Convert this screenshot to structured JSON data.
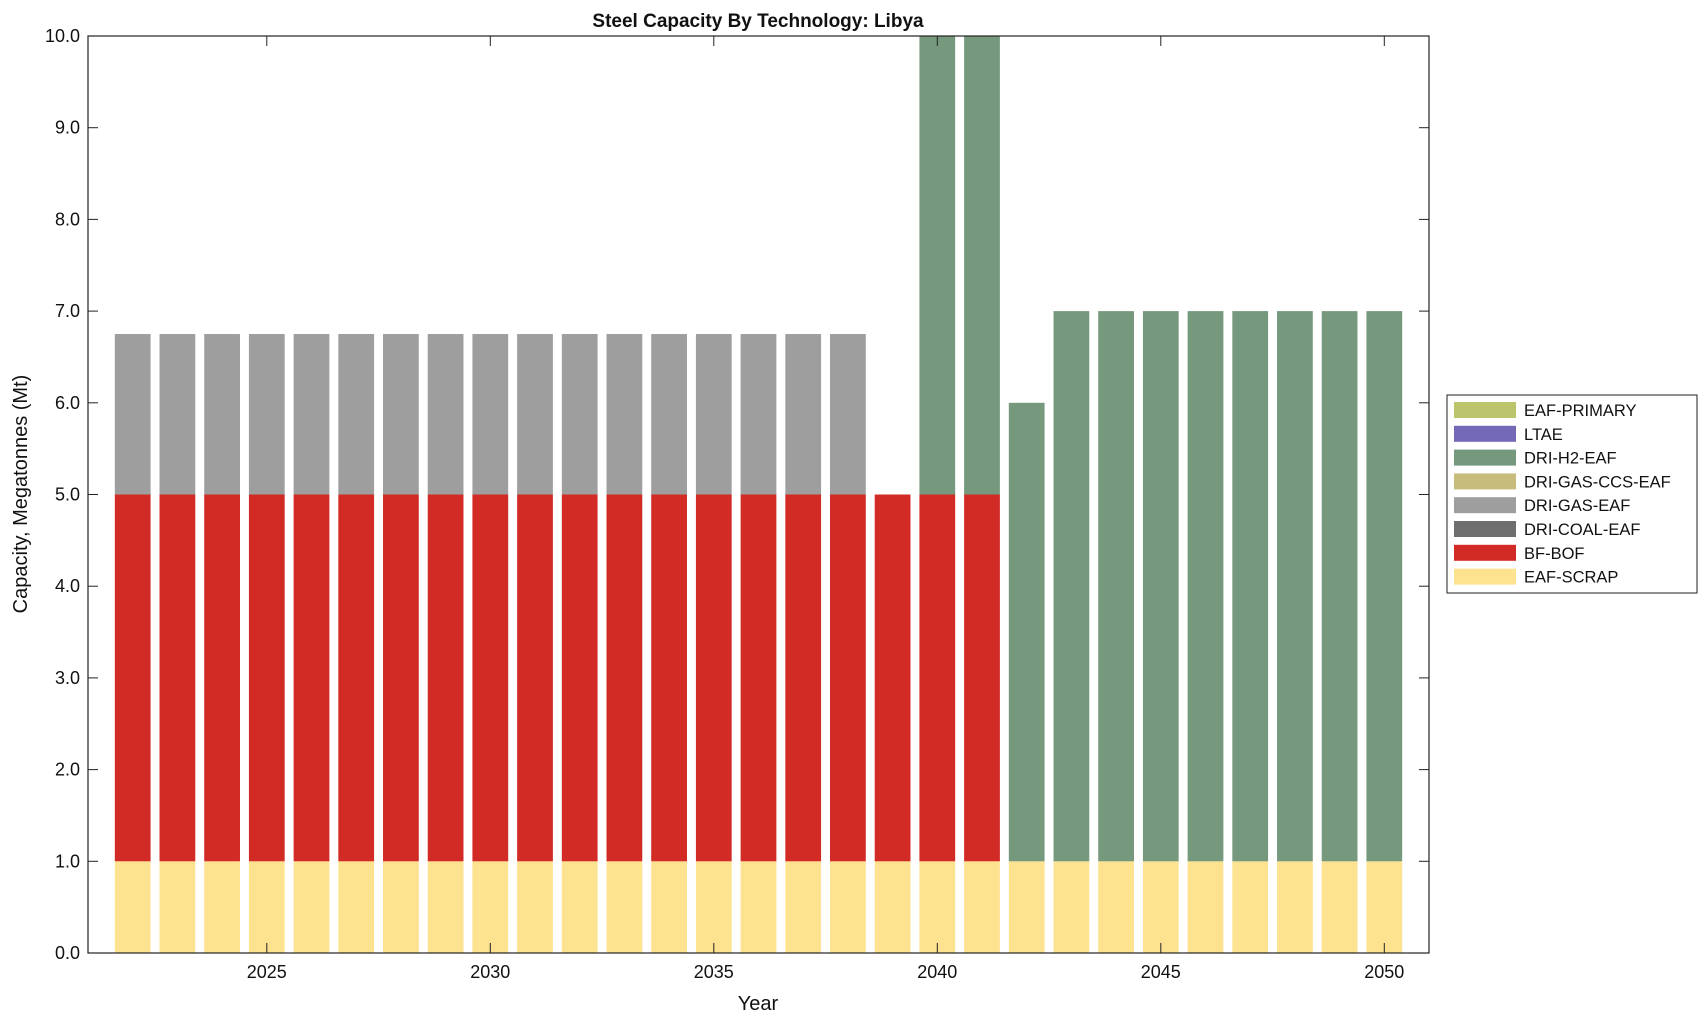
{
  "chart_data": {
    "type": "bar",
    "stacked": true,
    "title": "Steel Capacity By Technology: Libya",
    "xlabel": "Year",
    "ylabel": "Capacity, Megatonnes (Mt)",
    "xlim": [
      2021,
      2051
    ],
    "ylim": [
      0,
      10
    ],
    "x_ticks": [
      2025,
      2030,
      2035,
      2040,
      2045,
      2050
    ],
    "y_ticks": [
      "0.0",
      "1.0",
      "2.0",
      "3.0",
      "4.0",
      "5.0",
      "6.0",
      "7.0",
      "8.0",
      "9.0",
      "10.0"
    ],
    "grid": false,
    "legend_position": "outside-right",
    "x": [
      2022,
      2023,
      2024,
      2025,
      2026,
      2027,
      2028,
      2029,
      2030,
      2031,
      2032,
      2033,
      2034,
      2035,
      2036,
      2037,
      2038,
      2039,
      2040,
      2041,
      2042,
      2043,
      2044,
      2045,
      2046,
      2047,
      2048,
      2049,
      2050
    ],
    "series": [
      {
        "name": "EAF-SCRAP",
        "color": "#FDE290",
        "values": [
          1,
          1,
          1,
          1,
          1,
          1,
          1,
          1,
          1,
          1,
          1,
          1,
          1,
          1,
          1,
          1,
          1,
          1,
          1,
          1,
          1,
          1,
          1,
          1,
          1,
          1,
          1,
          1,
          1
        ]
      },
      {
        "name": "BF-BOF",
        "color": "#D22A24",
        "values": [
          4,
          4,
          4,
          4,
          4,
          4,
          4,
          4,
          4,
          4,
          4,
          4,
          4,
          4,
          4,
          4,
          4,
          4,
          4,
          4,
          0,
          0,
          0,
          0,
          0,
          0,
          0,
          0,
          0
        ]
      },
      {
        "name": "DRI-COAL-EAF",
        "color": "#6E6E6E",
        "values": [
          0,
          0,
          0,
          0,
          0,
          0,
          0,
          0,
          0,
          0,
          0,
          0,
          0,
          0,
          0,
          0,
          0,
          0,
          0,
          0,
          0,
          0,
          0,
          0,
          0,
          0,
          0,
          0,
          0
        ]
      },
      {
        "name": "DRI-GAS-EAF",
        "color": "#9E9E9E",
        "values": [
          1.75,
          1.75,
          1.75,
          1.75,
          1.75,
          1.75,
          1.75,
          1.75,
          1.75,
          1.75,
          1.75,
          1.75,
          1.75,
          1.75,
          1.75,
          1.75,
          1.75,
          0,
          0,
          0,
          0,
          0,
          0,
          0,
          0,
          0,
          0,
          0,
          0
        ]
      },
      {
        "name": "DRI-GAS-CCS-EAF",
        "color": "#C7BC7C",
        "values": [
          0,
          0,
          0,
          0,
          0,
          0,
          0,
          0,
          0,
          0,
          0,
          0,
          0,
          0,
          0,
          0,
          0,
          0,
          0,
          0,
          0,
          0,
          0,
          0,
          0,
          0,
          0,
          0,
          0
        ]
      },
      {
        "name": "DRI-H2-EAF",
        "color": "#76997E",
        "values": [
          0,
          0,
          0,
          0,
          0,
          0,
          0,
          0,
          0,
          0,
          0,
          0,
          0,
          0,
          0,
          0,
          0,
          0,
          5,
          5,
          5,
          6,
          6,
          6,
          6,
          6,
          6,
          6,
          6
        ]
      },
      {
        "name": "LTAE",
        "color": "#7469B6",
        "values": [
          0,
          0,
          0,
          0,
          0,
          0,
          0,
          0,
          0,
          0,
          0,
          0,
          0,
          0,
          0,
          0,
          0,
          0,
          0,
          0,
          0,
          0,
          0,
          0,
          0,
          0,
          0,
          0,
          0
        ]
      },
      {
        "name": "EAF-PRIMARY",
        "color": "#BDC56C",
        "values": [
          0,
          0,
          0,
          0,
          0,
          0,
          0,
          0,
          0,
          0,
          0,
          0,
          0,
          0,
          0,
          0,
          0,
          0,
          0,
          0,
          0,
          0,
          0,
          0,
          0,
          0,
          0,
          0,
          0
        ]
      }
    ],
    "legend_order": [
      "EAF-PRIMARY",
      "LTAE",
      "DRI-H2-EAF",
      "DRI-GAS-CCS-EAF",
      "DRI-GAS-EAF",
      "DRI-COAL-EAF",
      "BF-BOF",
      "EAF-SCRAP"
    ]
  }
}
